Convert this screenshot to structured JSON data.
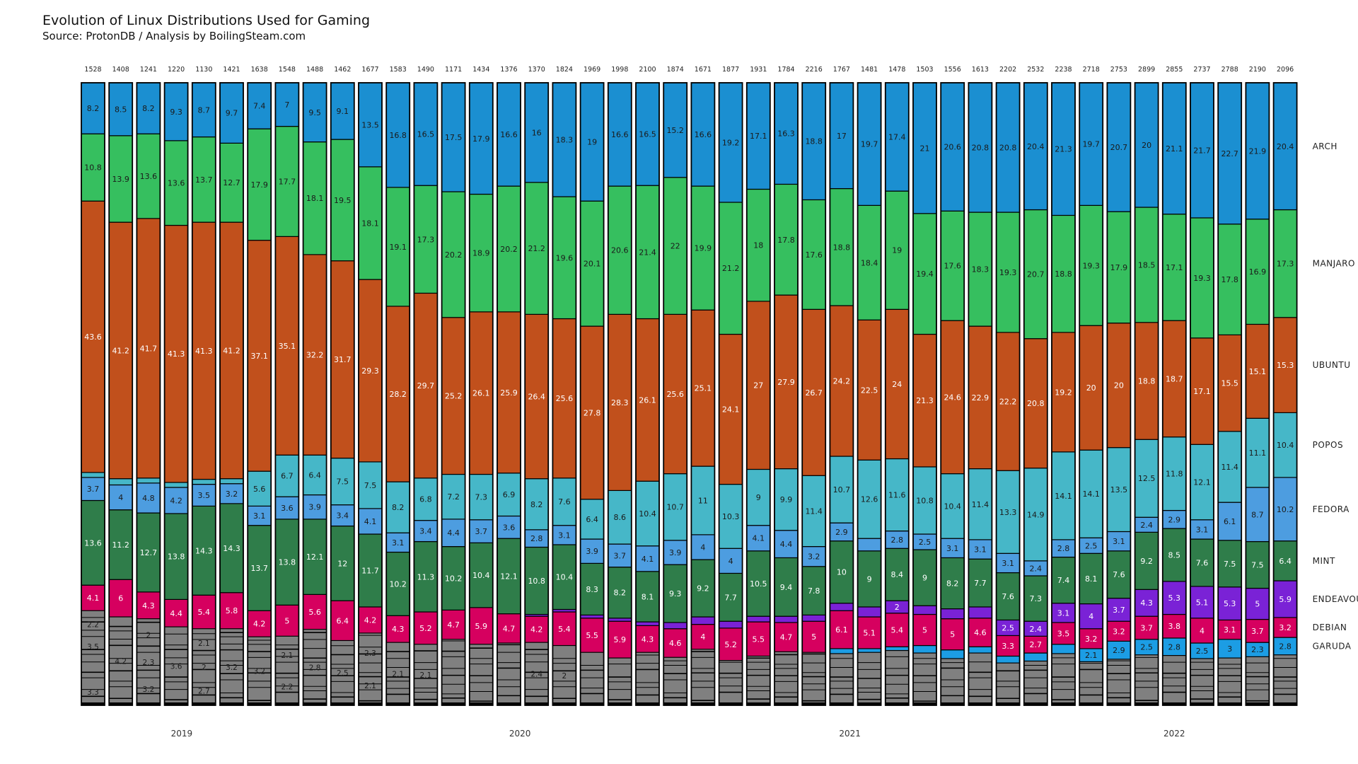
{
  "title": "Evolution of Linux Distributions Used for Gaming",
  "subtitle": "Source: ProtonDB / Analysis by BoilingSteam.com",
  "chart_data": {
    "type": "bar",
    "stacked": true,
    "normalized": true,
    "ylim": [
      0,
      100
    ],
    "legend_position": "right",
    "totals": [
      1528,
      1408,
      1241,
      1220,
      1130,
      1421,
      1638,
      1548,
      1488,
      1462,
      1677,
      1583,
      1490,
      1171,
      1434,
      1376,
      1370,
      1824,
      1969,
      1998,
      2100,
      1874,
      1671,
      1877,
      1931,
      1784,
      2216,
      1767,
      1481,
      1478,
      1503,
      1556,
      1613,
      2202,
      2532,
      2238,
      2718,
      2753,
      2899,
      2855,
      2737,
      2788,
      2190,
      2096
    ],
    "year_labels": [
      {
        "label": "2019",
        "bar_index": 3.2
      },
      {
        "label": "2020",
        "bar_index": 15.4
      },
      {
        "label": "2021",
        "bar_index": 27.3
      },
      {
        "label": "2022",
        "bar_index": 39.0
      }
    ],
    "series": [
      {
        "name": "GARUDA",
        "color": "#1c9de4",
        "values": [
          0,
          0,
          0,
          0,
          0,
          0,
          0,
          0,
          0,
          0,
          0,
          0,
          0,
          0,
          0,
          0,
          0,
          0,
          0,
          0,
          0,
          0,
          0,
          0,
          0,
          0,
          0,
          0.8,
          0.6,
          0.6,
          1.2,
          1.4,
          1.0,
          1.1,
          1.3,
          1.5,
          2.1,
          2.9,
          2.5,
          2.8,
          2.5,
          3.0,
          2.3,
          2.8
        ],
        "labels": [
          "",
          "",
          "",
          "",
          "",
          "",
          "",
          "",
          "",
          "",
          "",
          "",
          "",
          "",
          "",
          "",
          "",
          "",
          "",
          "",
          "",
          "",
          "",
          "",
          "",
          "",
          "",
          "",
          "",
          "",
          "",
          "",
          "",
          "",
          "",
          "",
          "2.1",
          "2.9",
          "2.5",
          "2.8",
          "2.5",
          "3",
          "2.3",
          "2.8"
        ]
      },
      {
        "name": "DEBIAN",
        "color": "#d6005f",
        "values": [
          4.1,
          6.0,
          4.3,
          4.4,
          5.4,
          5.8,
          4.2,
          5.0,
          5.6,
          6.4,
          4.2,
          4.3,
          5.2,
          4.7,
          5.9,
          4.7,
          4.2,
          5.4,
          5.5,
          5.9,
          4.3,
          4.6,
          4.0,
          5.2,
          5.5,
          4.7,
          5.0,
          6.1,
          5.1,
          5.4,
          5.0,
          5.0,
          4.6,
          3.3,
          2.7,
          3.5,
          3.2,
          3.2,
          3.7,
          3.8,
          4.0,
          3.1,
          3.7,
          3.2
        ],
        "labels": [
          "4.1",
          "6",
          "4.3",
          "4.4",
          "5.4",
          "5.8",
          "4.2",
          "5",
          "5.6",
          "6.4",
          "4.2",
          "4.3",
          "5.2",
          "4.7",
          "5.9",
          "4.7",
          "4.2",
          "5.4",
          "5.5",
          "5.9",
          "4.3",
          "4.6",
          "4",
          "5.2",
          "5.5",
          "4.7",
          "5",
          "6.1",
          "5.1",
          "5.4",
          "5",
          "5",
          "4.6",
          "3.3",
          "2.7",
          "3.5",
          "3.2",
          "3.2",
          "3.7",
          "3.8",
          "4",
          "3.1",
          "3.7",
          "3.2"
        ]
      },
      {
        "name": "ENDEAVOUR",
        "color": "#7a22d6",
        "values": [
          0,
          0,
          0,
          0,
          0,
          0,
          0,
          0,
          0,
          0,
          0,
          0,
          0,
          0,
          0,
          0,
          0.3,
          0.4,
          0.5,
          0.5,
          0.6,
          1.0,
          1.2,
          1.1,
          0.9,
          1.0,
          1.0,
          1.2,
          1.6,
          2.0,
          1.4,
          1.6,
          1.8,
          2.5,
          2.4,
          3.1,
          4.0,
          3.7,
          4.3,
          5.3,
          5.1,
          5.3,
          5.0,
          5.9
        ],
        "labels": [
          "",
          "",
          "",
          "",
          "",
          "",
          "",
          "",
          "",
          "",
          "",
          "",
          "",
          "",
          "",
          "",
          "",
          "",
          "",
          "",
          "",
          "",
          "",
          "",
          "",
          "",
          "",
          "",
          "",
          "2",
          "",
          "",
          "",
          "2.5",
          "2.4",
          "3.1",
          "4",
          "3.7",
          "4.3",
          "5.3",
          "5.1",
          "5.3",
          "5",
          "5.9"
        ]
      },
      {
        "name": "MINT",
        "color": "#2f7d4a",
        "values": [
          13.6,
          11.2,
          12.7,
          13.8,
          14.3,
          14.3,
          13.7,
          13.8,
          12.1,
          12.0,
          11.7,
          10.2,
          11.3,
          10.2,
          10.4,
          12.1,
          10.8,
          10.4,
          8.3,
          8.2,
          8.1,
          9.3,
          9.2,
          7.7,
          10.5,
          9.4,
          7.8,
          10.0,
          9.0,
          8.4,
          9.0,
          8.2,
          7.7,
          7.6,
          7.3,
          7.4,
          8.1,
          7.6,
          9.2,
          8.5,
          7.6,
          7.5,
          7.5,
          6.4
        ],
        "labels": [
          "13.6",
          "11.2",
          "12.7",
          "13.8",
          "14.3",
          "14.3",
          "13.7",
          "13.8",
          "12.1",
          "12",
          "11.7",
          "10.2",
          "11.3",
          "10.2",
          "10.4",
          "12.1",
          "10.8",
          "10.4",
          "8.3",
          "8.2",
          "8.1",
          "9.3",
          "9.2",
          "7.7",
          "10.5",
          "9.4",
          "7.8",
          "10",
          "9",
          "8.4",
          "9",
          "8.2",
          "7.7",
          "7.6",
          "7.3",
          "7.4",
          "8.1",
          "7.6",
          "9.2",
          "8.5",
          "7.6",
          "7.5",
          "7.5",
          "6.4"
        ]
      },
      {
        "name": "FEDORA",
        "color": "#4d9de0",
        "values": [
          3.7,
          4.0,
          4.8,
          4.2,
          3.5,
          3.2,
          3.1,
          3.6,
          3.9,
          3.4,
          4.1,
          3.1,
          3.4,
          4.4,
          3.7,
          3.6,
          2.8,
          3.1,
          3.9,
          3.7,
          4.1,
          3.9,
          4.0,
          4.0,
          4.1,
          4.4,
          3.2,
          2.9,
          2.0,
          2.8,
          2.5,
          3.1,
          3.1,
          3.1,
          2.4,
          2.8,
          2.5,
          3.1,
          2.4,
          2.9,
          3.1,
          6.1,
          8.7,
          10.2
        ],
        "labels": [
          "3.7",
          "4",
          "4.8",
          "4.2",
          "3.5",
          "3.2",
          "3.1",
          "3.6",
          "3.9",
          "3.4",
          "4.1",
          "3.1",
          "3.4",
          "4.4",
          "3.7",
          "3.6",
          "2.8",
          "3.1",
          "3.9",
          "3.7",
          "4.1",
          "3.9",
          "4",
          "4",
          "4.1",
          "4.4",
          "3.2",
          "2.9",
          "",
          "2.8",
          "2.5",
          "3.1",
          "3.1",
          "3.1",
          "2.4",
          "2.8",
          "2.5",
          "3.1",
          "2.4",
          "2.9",
          "3.1",
          "6.1",
          "8.7",
          "10.2"
        ]
      },
      {
        "name": "POPOS",
        "color": "#46b7c8",
        "values": [
          0.8,
          1.0,
          0.8,
          0.8,
          0.8,
          0.8,
          5.6,
          6.7,
          6.4,
          7.5,
          7.5,
          8.2,
          6.8,
          7.2,
          7.3,
          6.9,
          8.2,
          7.6,
          6.4,
          8.6,
          10.4,
          10.7,
          11.0,
          10.3,
          9.0,
          9.9,
          11.4,
          10.7,
          12.6,
          11.6,
          10.8,
          10.4,
          11.4,
          13.3,
          14.9,
          14.1,
          14.1,
          13.5,
          12.5,
          11.8,
          12.1,
          11.4,
          11.1,
          10.4
        ],
        "labels": [
          "",
          "",
          "",
          "",
          "",
          "",
          "5.6",
          "6.7",
          "6.4",
          "7.5",
          "7.5",
          "8.2",
          "6.8",
          "7.2",
          "7.3",
          "6.9",
          "8.2",
          "7.6",
          "6.4",
          "8.6",
          "10.4",
          "10.7",
          "11",
          "10.3",
          "9",
          "9.9",
          "11.4",
          "10.7",
          "12.6",
          "11.6",
          "10.8",
          "10.4",
          "11.4",
          "13.3",
          "14.9",
          "14.1",
          "14.1",
          "13.5",
          "12.5",
          "11.8",
          "12.1",
          "11.4",
          "11.1",
          "10.4"
        ]
      },
      {
        "name": "UBUNTU",
        "color": "#c1501c",
        "values": [
          43.6,
          41.2,
          41.7,
          41.3,
          41.3,
          41.2,
          37.1,
          35.1,
          32.2,
          31.7,
          29.3,
          28.2,
          29.7,
          25.2,
          26.1,
          25.9,
          26.4,
          25.6,
          27.8,
          28.3,
          26.1,
          25.6,
          25.1,
          24.1,
          27.0,
          27.9,
          26.7,
          24.2,
          22.5,
          24.0,
          21.3,
          24.6,
          22.9,
          22.2,
          20.8,
          19.2,
          20.0,
          20.0,
          18.8,
          18.7,
          17.1,
          15.5,
          15.1,
          15.3
        ],
        "labels": [
          "43.6",
          "41.2",
          "41.7",
          "41.3",
          "41.3",
          "41.2",
          "37.1",
          "35.1",
          "32.2",
          "31.7",
          "29.3",
          "28.2",
          "29.7",
          "25.2",
          "26.1",
          "25.9",
          "26.4",
          "25.6",
          "27.8",
          "28.3",
          "26.1",
          "25.6",
          "25.1",
          "24.1",
          "27",
          "27.9",
          "26.7",
          "24.2",
          "22.5",
          "24",
          "21.3",
          "24.6",
          "22.9",
          "22.2",
          "20.8",
          "19.2",
          "20",
          "20",
          "18.8",
          "18.7",
          "17.1",
          "15.5",
          "15.1",
          "15.3"
        ]
      },
      {
        "name": "MANJARO",
        "color": "#36bf5f",
        "values": [
          10.8,
          13.9,
          13.6,
          13.6,
          13.7,
          12.7,
          17.9,
          17.7,
          18.1,
          19.5,
          18.1,
          19.1,
          17.3,
          20.2,
          18.9,
          20.2,
          21.2,
          19.6,
          20.1,
          20.6,
          21.4,
          22.0,
          19.9,
          21.2,
          18.0,
          17.8,
          17.6,
          18.8,
          18.4,
          19.0,
          19.4,
          17.6,
          18.3,
          19.3,
          20.7,
          18.8,
          19.3,
          17.9,
          18.5,
          17.1,
          19.3,
          17.8,
          16.9,
          17.3
        ],
        "labels": [
          "10.8",
          "13.9",
          "13.6",
          "13.6",
          "13.7",
          "12.7",
          "17.9",
          "17.7",
          "18.1",
          "19.5",
          "18.1",
          "19.1",
          "17.3",
          "20.2",
          "18.9",
          "20.2",
          "21.2",
          "19.6",
          "20.1",
          "20.6",
          "21.4",
          "22",
          "19.9",
          "21.2",
          "18",
          "17.8",
          "17.6",
          "18.8",
          "18.4",
          "19",
          "19.4",
          "17.6",
          "18.3",
          "19.3",
          "20.7",
          "18.8",
          "19.3",
          "17.9",
          "18.5",
          "17.1",
          "19.3",
          "17.8",
          "16.9",
          "17.3"
        ]
      },
      {
        "name": "ARCH",
        "color": "#1b8fd1",
        "values": [
          8.2,
          8.5,
          8.2,
          9.3,
          8.7,
          9.7,
          7.4,
          7.0,
          9.5,
          9.1,
          13.5,
          16.8,
          16.5,
          17.5,
          17.9,
          16.6,
          16.0,
          18.3,
          19.0,
          16.6,
          16.5,
          15.2,
          16.6,
          19.2,
          17.1,
          16.3,
          18.8,
          17.0,
          19.7,
          17.4,
          21.0,
          20.6,
          20.8,
          20.8,
          20.4,
          21.3,
          19.7,
          20.7,
          20.0,
          21.1,
          21.7,
          22.7,
          21.9,
          20.4
        ],
        "labels": [
          "8.2",
          "8.5",
          "8.2",
          "9.3",
          "8.7",
          "9.7",
          "7.4",
          "7",
          "9.5",
          "9.1",
          "13.5",
          "16.8",
          "16.5",
          "17.5",
          "17.9",
          "16.6",
          "16",
          "18.3",
          "19",
          "16.6",
          "16.5",
          "15.2",
          "16.6",
          "19.2",
          "17.1",
          "16.3",
          "18.8",
          "17",
          "19.7",
          "17.4",
          "21",
          "20.6",
          "20.8",
          "20.8",
          "20.4",
          "21.3",
          "19.7",
          "20.7",
          "20",
          "21.1",
          "21.7",
          "22.7",
          "21.9",
          "20.4"
        ]
      }
    ],
    "others_labels": [
      [
        "2.2",
        "3.5",
        "",
        "3.3"
      ],
      [
        "4.2"
      ],
      [
        "2",
        "2.3",
        "3.2"
      ],
      [
        "3.6"
      ],
      [
        "2.1",
        "2",
        "2.7"
      ],
      [
        "3.2"
      ],
      [
        "3.2"
      ],
      [
        "2.1",
        "2.2"
      ],
      [
        "2.8"
      ],
      [
        "2.5"
      ],
      [
        "2.3",
        "2.1"
      ],
      [
        "2.1"
      ],
      [
        "2.1"
      ],
      [],
      [],
      [],
      [
        "2.4"
      ],
      [
        "2"
      ],
      [],
      [],
      [],
      [],
      [],
      [],
      [],
      [],
      [],
      [],
      [],
      [],
      [],
      [],
      [],
      [],
      [],
      [],
      [],
      [],
      [],
      [],
      [],
      [],
      [],
      []
    ],
    "others_color": "#808080"
  }
}
